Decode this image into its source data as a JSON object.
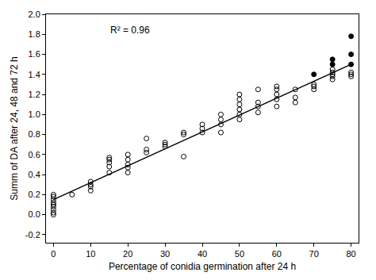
{
  "chart_data": {
    "type": "scatter",
    "annotations": [
      "R² = 0.96"
    ],
    "x_label": "Percentage of conidia germination after 24 h",
    "y_label": "Summ of DA after 24, 48 and 72 h",
    "xlim": [
      -2,
      82
    ],
    "xticks": [
      0,
      10,
      20,
      30,
      40,
      50,
      60,
      70,
      80
    ],
    "ylim": [
      -0.28,
      2.0
    ],
    "yticks": [
      -0.2,
      {
        "value": 0,
        "label": "0.0"
      },
      0.2,
      0.4,
      0.6,
      0.8,
      {
        "value": 1,
        "label": "1.0"
      },
      1.2,
      1.4,
      1.6,
      1.8,
      {
        "value": 2,
        "label": "2.0"
      }
    ],
    "grid": false,
    "series": [
      {
        "type": "scatter",
        "marker": "open_circle",
        "color": "#000000",
        "x": [
          0,
          0,
          0,
          0,
          0,
          0,
          0,
          0,
          0,
          5,
          10,
          10,
          10,
          10,
          15,
          15,
          15,
          15,
          15,
          20,
          20,
          20,
          20,
          20,
          25,
          25,
          25,
          30,
          30,
          30,
          35,
          35,
          35,
          40,
          40,
          40,
          45,
          45,
          45,
          45,
          50,
          50,
          50,
          50,
          50,
          50,
          55,
          55,
          55,
          55,
          60,
          60,
          60,
          60,
          60,
          65,
          65,
          65,
          70,
          70,
          70,
          75,
          75,
          75,
          75,
          75,
          80,
          80,
          80
        ],
        "values": [
          0.0,
          0.02,
          0.05,
          0.08,
          0.1,
          0.12,
          0.15,
          0.18,
          0.2,
          0.2,
          0.24,
          0.28,
          0.3,
          0.33,
          0.42,
          0.48,
          0.52,
          0.55,
          0.57,
          0.42,
          0.47,
          0.5,
          0.55,
          0.6,
          0.62,
          0.65,
          0.76,
          0.68,
          0.7,
          0.72,
          0.58,
          0.8,
          0.82,
          0.82,
          0.86,
          0.9,
          0.82,
          0.9,
          0.95,
          1.0,
          0.95,
          1.0,
          1.05,
          1.1,
          1.15,
          1.2,
          1.02,
          1.08,
          1.12,
          1.25,
          1.08,
          1.15,
          1.2,
          1.25,
          1.28,
          1.12,
          1.17,
          1.25,
          1.25,
          1.28,
          1.3,
          1.35,
          1.38,
          1.4,
          1.42,
          1.45,
          1.38,
          1.4,
          1.42
        ]
      },
      {
        "type": "scatter",
        "marker": "filled_circle",
        "color": "#000000",
        "x": [
          70,
          75,
          75,
          80,
          80,
          80
        ],
        "values": [
          1.4,
          1.5,
          1.55,
          1.5,
          1.6,
          1.78
        ]
      },
      {
        "type": "line",
        "line_style": "solid",
        "color": "#000000",
        "x": [
          0,
          80
        ],
        "values": [
          0.15,
          1.5
        ]
      }
    ]
  }
}
